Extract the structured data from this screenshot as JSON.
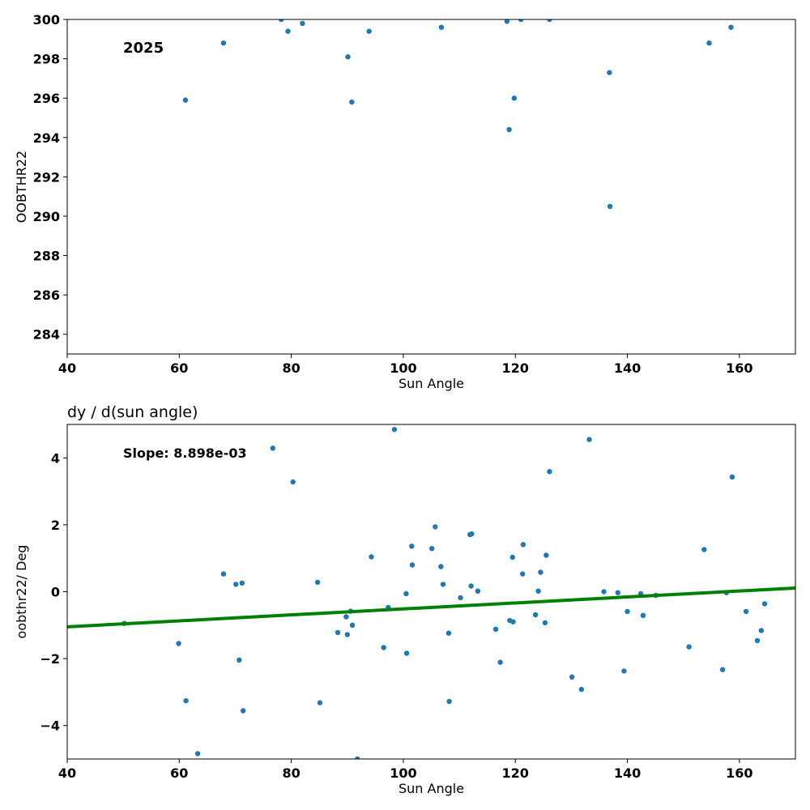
{
  "chart_data": [
    {
      "type": "scatter",
      "title": "",
      "xlabel": "Sun Angle",
      "ylabel": "OOBTHR22",
      "xlim": [
        40,
        170
      ],
      "ylim": [
        283,
        300
      ],
      "xticks": [
        40,
        60,
        80,
        100,
        120,
        140,
        160
      ],
      "yticks": [
        284,
        286,
        288,
        290,
        292,
        294,
        296,
        298,
        300
      ],
      "grid": false,
      "annotation": "2025",
      "series": [
        {
          "color": "#1f77b4",
          "points": [
            [
              61.1,
              295.9
            ],
            [
              67.9,
              298.8
            ],
            [
              78.2,
              300.0
            ],
            [
              79.4,
              299.4
            ],
            [
              82.0,
              299.8
            ],
            [
              90.1,
              298.1
            ],
            [
              90.8,
              295.8
            ],
            [
              93.9,
              299.4
            ],
            [
              106.8,
              299.6
            ],
            [
              118.5,
              299.9
            ],
            [
              118.9,
              294.4
            ],
            [
              119.8,
              296.0
            ],
            [
              121.0,
              300.0
            ],
            [
              126.1,
              300.0
            ],
            [
              136.8,
              297.3
            ],
            [
              136.9,
              290.5
            ],
            [
              154.6,
              298.8
            ],
            [
              158.5,
              299.6
            ]
          ]
        }
      ]
    },
    {
      "type": "scatter",
      "title": "dy / d(sun angle)",
      "xlabel": "Sun Angle",
      "ylabel": "oobthr22/ Deg",
      "xlim": [
        40,
        170
      ],
      "ylim": [
        -5,
        5
      ],
      "xticks": [
        40,
        60,
        80,
        100,
        120,
        140,
        160
      ],
      "yticks": [
        -4,
        -2,
        0,
        2,
        4
      ],
      "grid": false,
      "annotation": "Slope: 8.898e-03",
      "fit_line": {
        "color": "#008000",
        "x": [
          40,
          170
        ],
        "y": [
          -1.05,
          0.11
        ]
      },
      "series": [
        {
          "color": "#1f77b4",
          "points": [
            [
              50.2,
              -0.95
            ],
            [
              59.9,
              -1.55
            ],
            [
              61.2,
              -3.26
            ],
            [
              63.3,
              -4.84
            ],
            [
              67.9,
              0.53
            ],
            [
              70.1,
              0.22
            ],
            [
              70.7,
              -2.04
            ],
            [
              71.2,
              0.26
            ],
            [
              71.4,
              -3.56
            ],
            [
              76.7,
              4.29
            ],
            [
              80.3,
              3.28
            ],
            [
              84.7,
              0.28
            ],
            [
              85.1,
              -3.32
            ],
            [
              88.3,
              -1.22
            ],
            [
              89.8,
              -0.75
            ],
            [
              90.0,
              -1.28
            ],
            [
              90.6,
              -0.58
            ],
            [
              90.9,
              -1.0
            ],
            [
              91.8,
              -5.0
            ],
            [
              94.3,
              1.04
            ],
            [
              96.5,
              -1.67
            ],
            [
              97.3,
              -0.47
            ],
            [
              98.4,
              4.85
            ],
            [
              100.5,
              -0.06
            ],
            [
              100.6,
              -1.84
            ],
            [
              101.5,
              1.36
            ],
            [
              101.6,
              0.8
            ],
            [
              105.1,
              1.29
            ],
            [
              105.7,
              1.94
            ],
            [
              106.7,
              0.75
            ],
            [
              107.1,
              0.22
            ],
            [
              108.1,
              -1.24
            ],
            [
              108.2,
              -3.28
            ],
            [
              110.2,
              -0.18
            ],
            [
              111.9,
              1.71
            ],
            [
              112.2,
              1.73
            ],
            [
              112.1,
              0.17
            ],
            [
              113.3,
              0.02
            ],
            [
              116.5,
              -1.12
            ],
            [
              117.3,
              -2.11
            ],
            [
              119.0,
              -0.86
            ],
            [
              119.5,
              1.03
            ],
            [
              119.6,
              -0.9
            ],
            [
              121.3,
              0.53
            ],
            [
              121.4,
              1.41
            ],
            [
              123.6,
              -0.69
            ],
            [
              124.1,
              0.02
            ],
            [
              124.5,
              0.58
            ],
            [
              125.3,
              -0.93
            ],
            [
              125.5,
              1.09
            ],
            [
              126.1,
              3.59
            ],
            [
              130.1,
              -2.55
            ],
            [
              131.8,
              -2.92
            ],
            [
              133.2,
              4.55
            ],
            [
              135.8,
              0.0
            ],
            [
              138.3,
              -0.03
            ],
            [
              139.4,
              -2.37
            ],
            [
              140.0,
              -0.59
            ],
            [
              142.4,
              -0.06
            ],
            [
              142.8,
              -0.71
            ],
            [
              145.1,
              -0.11
            ],
            [
              151.0,
              -1.65
            ],
            [
              153.7,
              1.26
            ],
            [
              157.0,
              -2.33
            ],
            [
              157.7,
              -0.03
            ],
            [
              158.7,
              3.43
            ],
            [
              161.2,
              -0.59
            ],
            [
              163.2,
              -1.46
            ],
            [
              163.9,
              -1.16
            ],
            [
              164.5,
              -0.36
            ]
          ]
        }
      ]
    }
  ]
}
